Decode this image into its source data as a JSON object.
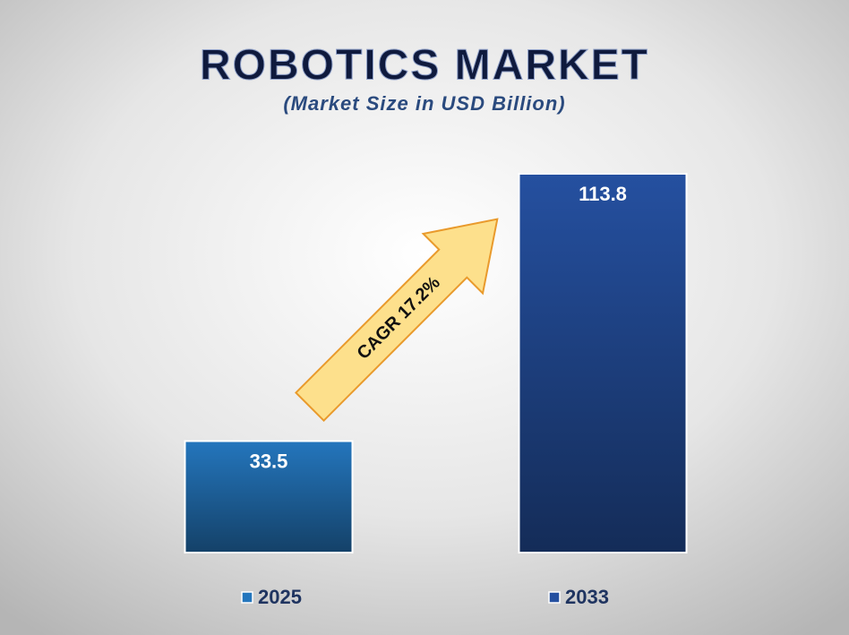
{
  "chart_data": {
    "type": "bar",
    "title": "ROBOTICS MARKET",
    "subtitle": "(Market Size in USD Billion)",
    "annotation": "CAGR 17.2%",
    "series": [
      {
        "name": "2025",
        "color": "#2476bd",
        "values": [
          33.5
        ]
      },
      {
        "name": "2033",
        "color": "#2550a0",
        "values": [
          113.8
        ]
      }
    ]
  }
}
